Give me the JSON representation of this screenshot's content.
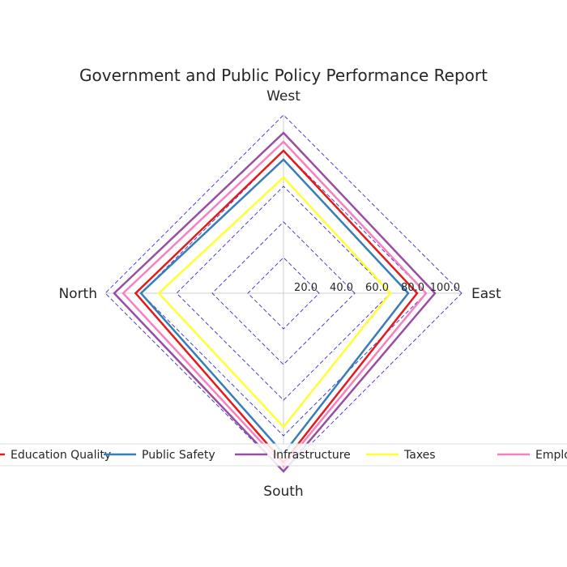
{
  "chart_data": {
    "type": "radar",
    "title": "Government and Public Policy Performance Report",
    "axes": [
      "East",
      "West",
      "North",
      "South"
    ],
    "rlim": [
      0,
      100
    ],
    "rticks": [
      20,
      40,
      60,
      80,
      100
    ],
    "rtick_labels": [
      "20.0",
      "40.0",
      "60.0",
      "80.0",
      "100.0"
    ],
    "grid": true,
    "legend_position": "bottom",
    "series": [
      {
        "name": "Education Quality",
        "color": "#e41a1c",
        "values": [
          75,
          80,
          83,
          95
        ]
      },
      {
        "name": "Public Safety",
        "color": "#377eb8",
        "values": [
          70,
          75,
          80,
          90
        ]
      },
      {
        "name": "Infrastructure",
        "color": "#984ea3",
        "values": [
          85,
          90,
          95,
          100
        ]
      },
      {
        "name": "Taxes",
        "color": "#ffff33",
        "values": [
          60,
          65,
          70,
          75
        ]
      },
      {
        "name": "Employment",
        "color": "#f781bf",
        "values": [
          80,
          85,
          90,
          97
        ]
      }
    ]
  }
}
